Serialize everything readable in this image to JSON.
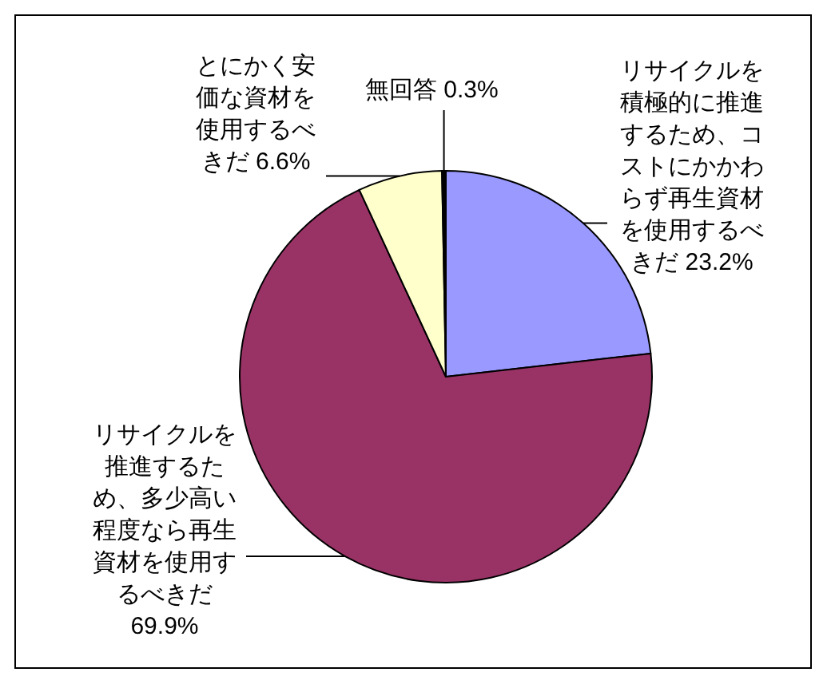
{
  "chart_data": {
    "type": "pie",
    "categories": [
      "リサイクルを積極的に推進するため、コストにかかわらず再生資材を使用するべきだ",
      "リサイクルを推進するため、多少高い程度なら再生資材を使用するべきだ",
      "とにかく安価な資材を使用するべきだ",
      "無回答"
    ],
    "values": [
      23.2,
      69.9,
      6.6,
      0.3
    ],
    "colors": [
      "#9999ff",
      "#993366",
      "#ffffcc",
      "#000000"
    ],
    "value_labels": [
      "23.2%",
      "69.9%",
      "6.6%",
      "0.3%"
    ]
  }
}
